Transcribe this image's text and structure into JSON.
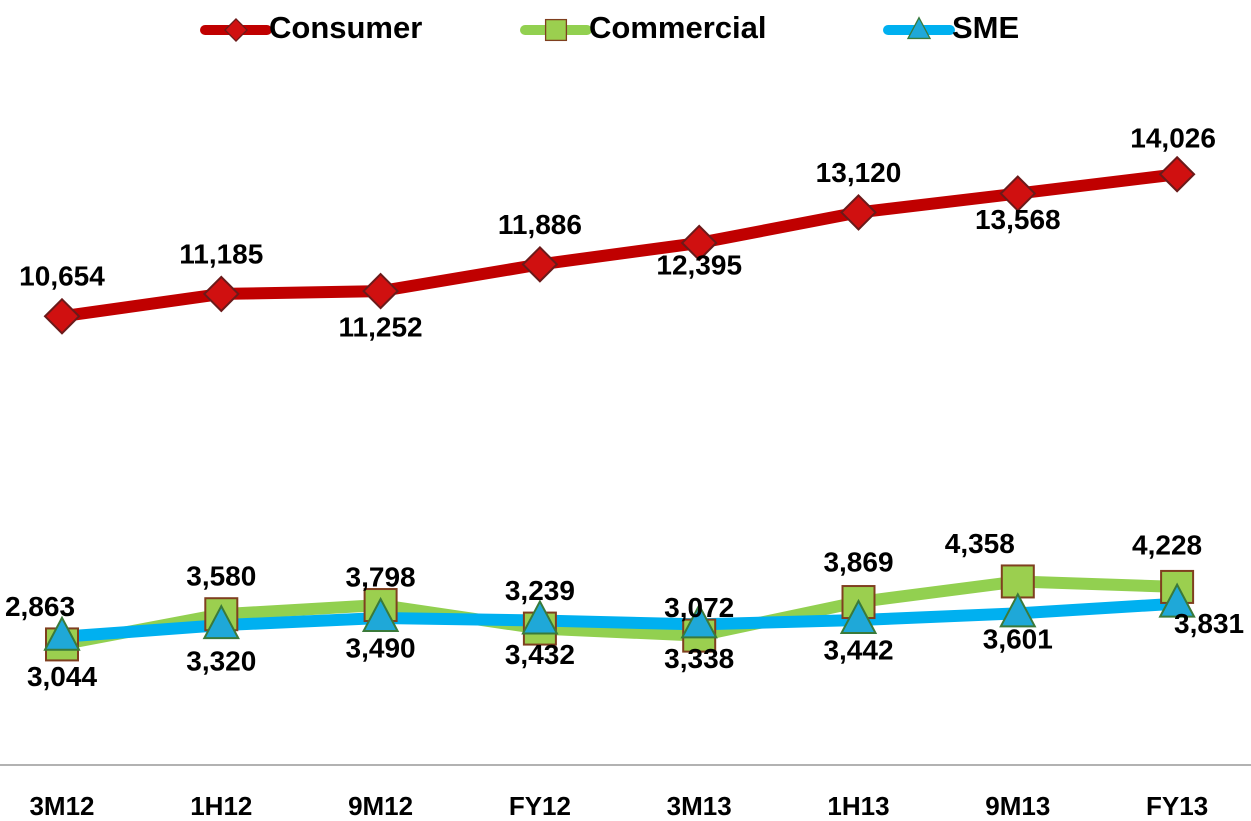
{
  "chart_data": {
    "type": "line",
    "categories": [
      "3M12",
      "1H12",
      "9M12",
      "FY12",
      "3M13",
      "1H13",
      "9M13",
      "FY13"
    ],
    "series": [
      {
        "name": "Consumer",
        "color": "#c00000",
        "marker": "diamond",
        "values": [
          10654,
          11185,
          11252,
          11886,
          12395,
          13120,
          13568,
          14026
        ],
        "value_labels": [
          "10,654",
          "11,185",
          "11,252",
          "11,886",
          "12,395",
          "13,120",
          "13,568",
          "14,026"
        ]
      },
      {
        "name": "Commercial",
        "color": "#92d050",
        "marker": "square",
        "values": [
          2863,
          3580,
          3798,
          3239,
          3072,
          3869,
          4358,
          4228
        ],
        "value_labels": [
          "2,863",
          "3,580",
          "3,798",
          "3,239",
          "3,072",
          "3,869",
          "4,358",
          "4,228"
        ]
      },
      {
        "name": "SME",
        "color": "#00b0f0",
        "marker": "triangle",
        "values": [
          3044,
          3320,
          3490,
          3432,
          3338,
          3442,
          3601,
          3831
        ],
        "value_labels": [
          "3,044",
          "3,320",
          "3,490",
          "3,432",
          "3,338",
          "3,442",
          "3,601",
          "3,831"
        ]
      }
    ],
    "ylim": [
      0,
      17000
    ],
    "legend": "top"
  }
}
